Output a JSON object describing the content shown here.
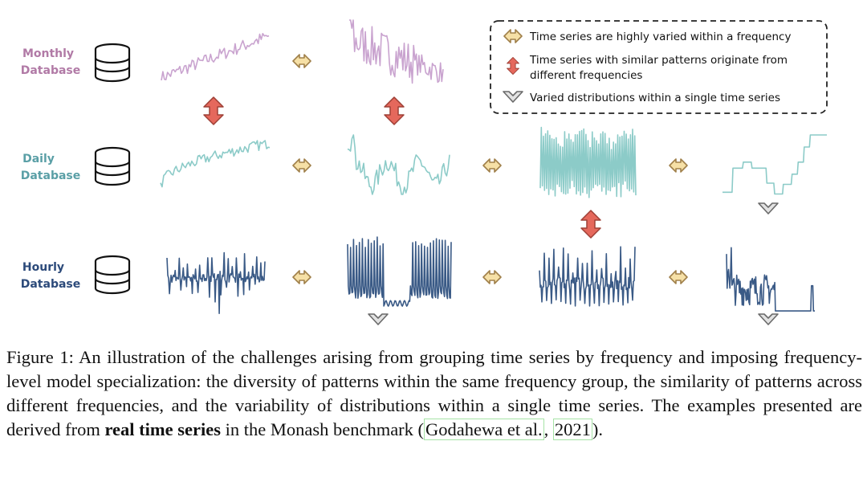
{
  "rows": [
    {
      "label_line1": "Monthly",
      "label_line2": "Database",
      "color": "#b17aa6",
      "line_color": "#c9a3cf"
    },
    {
      "label_line1": "Daily",
      "label_line2": "Database",
      "color": "#5a9fa6",
      "line_color": "#8ccbc8"
    },
    {
      "label_line1": "Hourly",
      "label_line2": "Database",
      "color": "#2c4a7a",
      "line_color": "#3a5a86"
    }
  ],
  "legend": {
    "item1": "Time series are highly varied within a frequency",
    "item2_line1": "Time series with similar patterns originate from",
    "item2_line2": "different frequencies",
    "item3": "Varied distributions within a single time series"
  },
  "caption": {
    "prefix": "Figure 1:  An illustration of the challenges arising from grouping time series by frequency and imposing frequency-level model specialization: the diversity of patterns within the same frequency group, the similarity of patterns across different frequencies, and the variability of distributions within a single time series. The examples presented are derived from ",
    "bold": "real time series",
    "middle": " in the Monash benchmark (",
    "cite1": "Godahewa et al.",
    "sep": ", ",
    "cite2": "2021",
    "suffix": ")."
  },
  "colors": {
    "arrow_h_fill": "#f6e0a6",
    "arrow_h_stroke": "#a0804a",
    "arrow_v_fill": "#e5685c",
    "arrow_v_stroke": "#9e4036",
    "arrow_d_fill": "#e2e2e2",
    "arrow_d_stroke": "#6a6a6a"
  }
}
